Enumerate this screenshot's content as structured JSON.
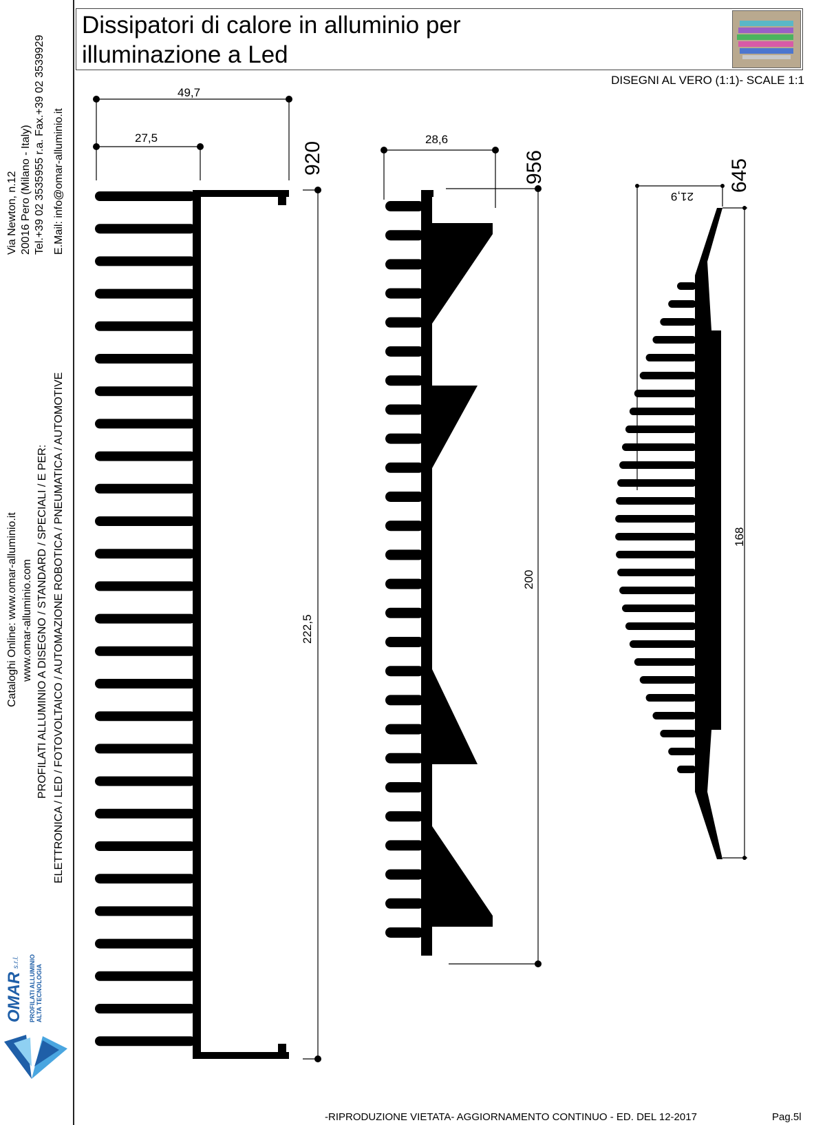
{
  "title": {
    "line1": "Dissipatori di calore in alluminio per",
    "line2": "illuminazione a Led"
  },
  "scale_note": "DISEGNI AL VERO (1:1)- SCALE 1:1",
  "sidebar": {
    "address": [
      "Via Newton, n.12",
      "20016 Pero (Milano - Italy)",
      "Tel.+39 02 3535955 r.a. Fax.+39 02 3539929",
      "E.Mail: info@omar-alluminio.it"
    ],
    "catalog": [
      "Cataloghi Online: www.omar-alluminio.it",
      "www.omar-alluminio.com",
      "PROFILATI ALLUMINIO A DISEGNO / STANDARD / SPECIALI / E PER:",
      "ELETTRONICA / LED / FOTOVOLTAICO / AUTOMAZIONE ROBOTICA / PNEUMATICA / AUTOMOTIVE"
    ],
    "logo": {
      "brand": "OMAR",
      "suffix": "s.r.l.",
      "tagline1": "PROFILATI ALLUMINIO",
      "tagline2": "ALTA TECNOLOGIA",
      "color": "#1f5fa8",
      "accent": "#4aa6e0"
    }
  },
  "profiles": [
    {
      "code": "920",
      "width_total": "49,7",
      "width_partial": "27,5",
      "height": "222,5"
    },
    {
      "code": "956",
      "width": "28,6",
      "height": "200"
    },
    {
      "code": "645",
      "width": "21,9",
      "height": "168"
    }
  ],
  "footer": {
    "text": "-RIPRODUZIONE VIETATA- AGGIORNAMENTO CONTINUO - ED. DEL 12-2017",
    "page": "Pag.5l"
  }
}
